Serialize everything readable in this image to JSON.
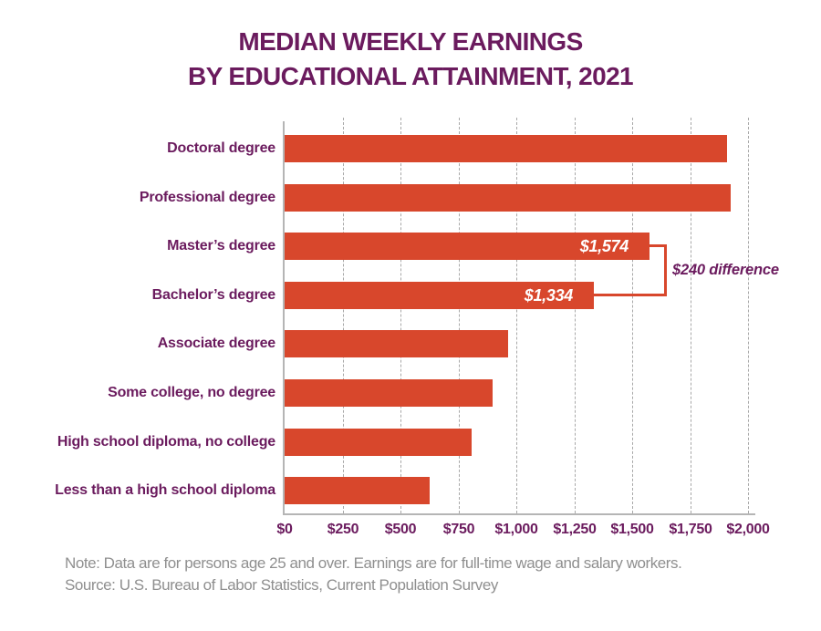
{
  "title": {
    "line1": "MEDIAN WEEKLY EARNINGS",
    "line2": "BY EDUCATIONAL ATTAINMENT, 2021"
  },
  "chart_data": {
    "type": "bar",
    "orientation": "horizontal",
    "title": "MEDIAN WEEKLY EARNINGS BY EDUCATIONAL ATTAINMENT, 2021",
    "categories": [
      "Doctoral degree",
      "Professional degree",
      "Master’s degree",
      "Bachelor’s degree",
      "Associate degree",
      "Some college, no degree",
      "High school diploma, no college",
      "Less than a high school diploma"
    ],
    "values": [
      1909,
      1924,
      1574,
      1334,
      963,
      899,
      809,
      626
    ],
    "xlabel": "",
    "ylabel": "",
    "xlim": [
      0,
      2000
    ],
    "x_tick_values": [
      0,
      250,
      500,
      750,
      1000,
      1250,
      1500,
      1750,
      2000
    ],
    "x_tick_labels": [
      "$0",
      "$250",
      "$500",
      "$750",
      "$1,000",
      "$1,250",
      "$1,500",
      "$1,750",
      "$2,000"
    ],
    "grid": "vertical-dashed",
    "legend": "none",
    "bar_value_labels": {
      "Master’s degree": "$1,574",
      "Bachelor’s degree": "$1,334"
    },
    "annotation": {
      "text": "$240 difference",
      "between": [
        "Master’s degree",
        "Bachelor’s degree"
      ]
    }
  },
  "footer": {
    "note": "Note: Data are for persons age 25 and over. Earnings are for full-time wage and salary workers.",
    "source": "Source: U.S. Bureau of Labor Statistics, Current Population Survey"
  },
  "colors": {
    "bar": "#d8472c",
    "accent_purple": "#6b1b5e",
    "grid_gray": "#a8a8a8",
    "axis_gray": "#b5b5b5",
    "note_gray": "#8f8f8f",
    "bar_label_white": "#ffffff"
  }
}
